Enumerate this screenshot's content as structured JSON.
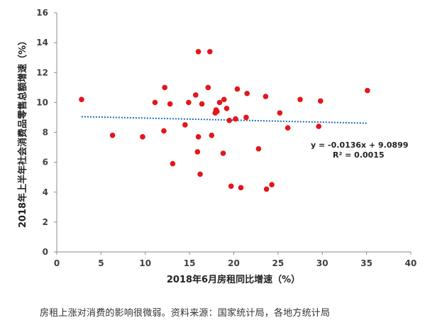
{
  "chart_data": {
    "type": "scatter",
    "title": "",
    "xlabel": "2018年6月房租同比增速（%）",
    "ylabel": "2018年上半年社会消费品零售总额增速（%）",
    "xlim": [
      0,
      40
    ],
    "ylim": [
      0,
      16
    ],
    "x_ticks": [
      "0",
      "5",
      "10",
      "15",
      "20",
      "25",
      "30",
      "35",
      "40"
    ],
    "y_ticks": [
      "0",
      "2",
      "4",
      "6",
      "8",
      "10",
      "12",
      "14",
      "16"
    ],
    "grid": false,
    "legend": "none",
    "point_color": "#e3161b",
    "trend_color": "#1f6fb5",
    "points": [
      {
        "x": 2.8,
        "y": 10.2
      },
      {
        "x": 6.3,
        "y": 7.8
      },
      {
        "x": 9.7,
        "y": 7.7
      },
      {
        "x": 11.1,
        "y": 10.0
      },
      {
        "x": 12.1,
        "y": 8.1
      },
      {
        "x": 12.2,
        "y": 11.0
      },
      {
        "x": 12.8,
        "y": 9.9
      },
      {
        "x": 13.1,
        "y": 5.9
      },
      {
        "x": 14.5,
        "y": 8.5
      },
      {
        "x": 14.9,
        "y": 10.0
      },
      {
        "x": 15.7,
        "y": 10.5
      },
      {
        "x": 15.9,
        "y": 6.7
      },
      {
        "x": 16.0,
        "y": 13.4
      },
      {
        "x": 16.0,
        "y": 7.7
      },
      {
        "x": 16.2,
        "y": 5.2
      },
      {
        "x": 16.4,
        "y": 9.9
      },
      {
        "x": 17.1,
        "y": 11.0
      },
      {
        "x": 17.3,
        "y": 13.4
      },
      {
        "x": 17.5,
        "y": 7.8
      },
      {
        "x": 17.9,
        "y": 9.3
      },
      {
        "x": 18.0,
        "y": 9.5
      },
      {
        "x": 18.1,
        "y": 9.4
      },
      {
        "x": 18.4,
        "y": 10.0
      },
      {
        "x": 18.8,
        "y": 6.6
      },
      {
        "x": 18.9,
        "y": 10.2
      },
      {
        "x": 19.2,
        "y": 9.6
      },
      {
        "x": 19.5,
        "y": 8.8
      },
      {
        "x": 19.7,
        "y": 4.4
      },
      {
        "x": 20.2,
        "y": 8.9
      },
      {
        "x": 20.4,
        "y": 10.9
      },
      {
        "x": 20.8,
        "y": 4.3
      },
      {
        "x": 21.4,
        "y": 9.0
      },
      {
        "x": 21.5,
        "y": 10.6
      },
      {
        "x": 22.8,
        "y": 6.9
      },
      {
        "x": 23.6,
        "y": 10.4
      },
      {
        "x": 23.7,
        "y": 4.2
      },
      {
        "x": 24.3,
        "y": 4.5
      },
      {
        "x": 25.2,
        "y": 9.3
      },
      {
        "x": 26.1,
        "y": 8.3
      },
      {
        "x": 27.5,
        "y": 10.2
      },
      {
        "x": 29.6,
        "y": 8.4
      },
      {
        "x": 29.8,
        "y": 10.1
      },
      {
        "x": 35.1,
        "y": 10.8
      }
    ],
    "trendline": {
      "slope": -0.0136,
      "intercept": 9.0899,
      "x_range": [
        2.8,
        35.1
      ],
      "equation": "y = -0.0136x + 9.0899",
      "r_squared": "R² = 0.0015"
    }
  },
  "caption": "房租上涨对消费的影响很微弱。资料来源：国家统计局，各地方统计局"
}
